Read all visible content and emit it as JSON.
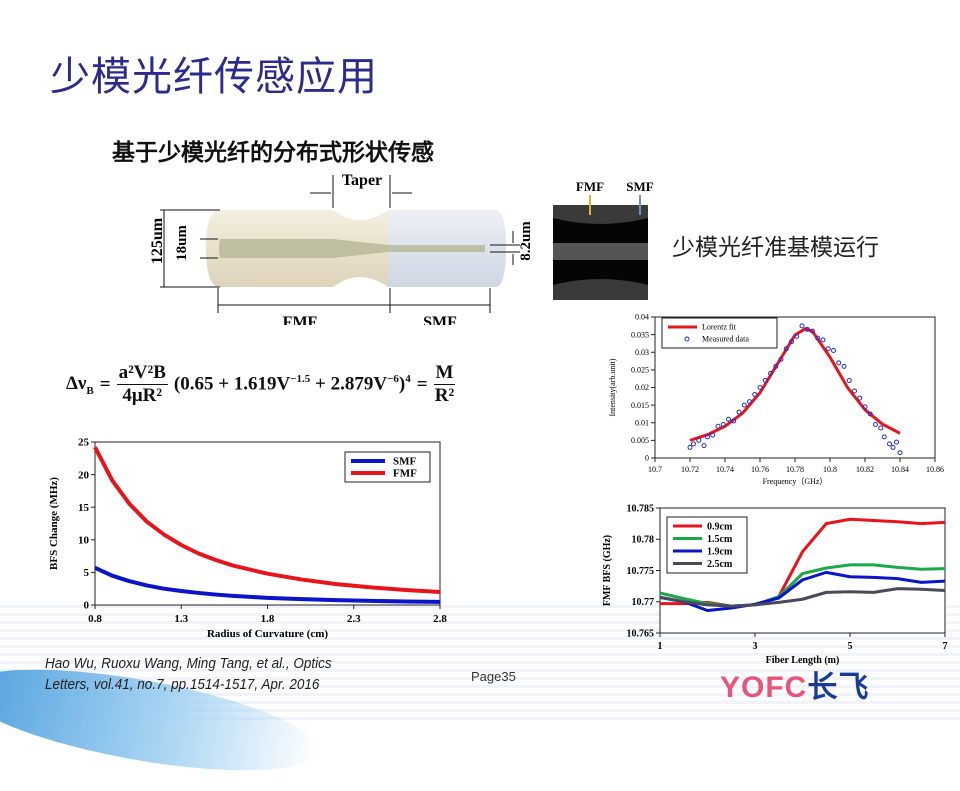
{
  "slide": {
    "title": "少模光纤传感应用",
    "subtitle": "基于少模光纤的分布式形状传感",
    "right_note": "少模光纤准基模运行",
    "page": "Page35",
    "citation_line1": "Hao Wu, Ruoxu Wang, Ming Tang, et al., Optics",
    "citation_line2": "Letters, vol.41, no.7, pp.1514-1517, Apr. 2016",
    "logo_left": "YOFC",
    "logo_right": "长飞"
  },
  "diagram": {
    "taper": "Taper",
    "d125": "125um",
    "d18": "18um",
    "d82": "8.2um",
    "fmf": "FMF",
    "smf": "SMF",
    "micro_fmf": "FMF",
    "micro_smf": "SMF"
  },
  "formula": {
    "lhs": "Δν",
    "lhs_sub": "B",
    "eq": "=",
    "num": "a²V²B",
    "den": "4μR²",
    "paren_open": "(0.65 + 1.619V",
    "exp1": "−1.5",
    "mid": " + 2.879V",
    "exp2": "−6",
    "paren_close": ")",
    "pow": "4",
    "eq2": "=",
    "num2": "M",
    "den2": "R²"
  },
  "colors": {
    "title": "#2b2b8e",
    "red": "#e8141c",
    "blue": "#0a14c8",
    "green": "#1aa84a",
    "gray": "#4a4a5a",
    "logo_red": "#e8557a",
    "logo_blue": "#1a3a9a"
  },
  "chart_data": [
    {
      "type": "line",
      "title": "",
      "xlabel": "Radius of Curvature (cm)",
      "ylabel": "BFS Change (MHz)",
      "xlim": [
        0.8,
        2.8
      ],
      "ylim": [
        0,
        25
      ],
      "xticks": [
        "0.8",
        "1.3",
        "1.8",
        "2.3",
        "2.8"
      ],
      "yticks": [
        "0",
        "5",
        "10",
        "15",
        "20",
        "25"
      ],
      "legend": "top-right",
      "x": [
        0.8,
        0.9,
        1.0,
        1.1,
        1.2,
        1.3,
        1.4,
        1.5,
        1.6,
        1.8,
        2.0,
        2.2,
        2.4,
        2.6,
        2.8
      ],
      "series": [
        {
          "name": "SMF",
          "color": "#0a14c8",
          "values": [
            5.7,
            4.5,
            3.65,
            3.0,
            2.5,
            2.15,
            1.85,
            1.6,
            1.4,
            1.1,
            0.9,
            0.75,
            0.63,
            0.54,
            0.47
          ]
        },
        {
          "name": "FMF",
          "color": "#e8141c",
          "values": [
            24.2,
            19.1,
            15.5,
            12.8,
            10.8,
            9.2,
            7.9,
            6.9,
            6.05,
            4.8,
            3.9,
            3.2,
            2.7,
            2.3,
            2.0
          ]
        }
      ]
    },
    {
      "type": "scatter",
      "title": "",
      "xlabel": "Frequency（GHz）",
      "ylabel": "Intensity(arb.unit)",
      "xlim": [
        10.7,
        10.86
      ],
      "ylim": [
        0,
        0.04
      ],
      "xticks": [
        "10.7",
        "10.72",
        "10.74",
        "10.76",
        "10.78",
        "10.8",
        "10.82",
        "10.84",
        "10.86"
      ],
      "yticks": [
        "0",
        "0.005",
        "0.01",
        "0.015",
        "0.02",
        "0.025",
        "0.03",
        "0.035",
        "0.04"
      ],
      "legend": "top-left",
      "series": [
        {
          "name": "Lorentz fit",
          "type": "line",
          "color": "#e8141c",
          "x": [
            10.72,
            10.73,
            10.74,
            10.75,
            10.76,
            10.77,
            10.78,
            10.786,
            10.79,
            10.8,
            10.81,
            10.82,
            10.83,
            10.84
          ],
          "values": [
            0.005,
            0.0066,
            0.009,
            0.0127,
            0.0185,
            0.0267,
            0.0349,
            0.0367,
            0.0359,
            0.0286,
            0.02,
            0.0137,
            0.0096,
            0.007
          ]
        },
        {
          "name": "Measured data",
          "type": "scatter",
          "color": "#2030d0",
          "x": [
            10.72,
            10.722,
            10.725,
            10.728,
            10.73,
            10.733,
            10.736,
            10.739,
            10.742,
            10.745,
            10.748,
            10.751,
            10.754,
            10.757,
            10.76,
            10.763,
            10.766,
            10.769,
            10.772,
            10.775,
            10.778,
            10.781,
            10.784,
            10.787,
            10.79,
            10.793,
            10.796,
            10.799,
            10.802,
            10.805,
            10.808,
            10.811,
            10.814,
            10.817,
            10.82,
            10.823,
            10.826,
            10.829,
            10.831,
            10.834,
            10.836,
            10.838,
            10.84
          ],
          "values": [
            0.003,
            0.004,
            0.005,
            0.0035,
            0.006,
            0.0065,
            0.009,
            0.0095,
            0.011,
            0.0105,
            0.013,
            0.015,
            0.016,
            0.018,
            0.02,
            0.022,
            0.024,
            0.026,
            0.028,
            0.031,
            0.033,
            0.0345,
            0.0375,
            0.0365,
            0.036,
            0.034,
            0.0335,
            0.031,
            0.0305,
            0.027,
            0.026,
            0.022,
            0.019,
            0.017,
            0.0145,
            0.0125,
            0.0095,
            0.0085,
            0.006,
            0.004,
            0.003,
            0.0045,
            0.0015
          ]
        }
      ]
    },
    {
      "type": "line",
      "title": "",
      "xlabel": "Fiber Length (m)",
      "ylabel": "FMF BFS (GHz)",
      "xlim": [
        1,
        7
      ],
      "ylim": [
        10.765,
        10.785
      ],
      "xticks": [
        "1",
        "3",
        "5",
        "7"
      ],
      "yticks": [
        "10.765",
        "10.77",
        "10.775",
        "10.78",
        "10.785"
      ],
      "legend": "top-left",
      "x": [
        1,
        1.5,
        2,
        2.5,
        3,
        3.5,
        4,
        4.5,
        5,
        5.5,
        6,
        6.5,
        7
      ],
      "series": [
        {
          "name": "0.9cm",
          "color": "#e8141c",
          "values": [
            10.7697,
            10.7697,
            10.7699,
            10.7693,
            10.7695,
            10.7708,
            10.778,
            10.7825,
            10.7832,
            10.783,
            10.7828,
            10.7825,
            10.7827
          ]
        },
        {
          "name": "1.5cm",
          "color": "#1aa84a",
          "values": [
            10.7714,
            10.7705,
            10.7697,
            10.7693,
            10.7695,
            10.7708,
            10.7745,
            10.7754,
            10.7759,
            10.7759,
            10.7755,
            10.7752,
            10.7753
          ]
        },
        {
          "name": "1.9cm",
          "color": "#0a14c8",
          "values": [
            10.7707,
            10.77,
            10.7686,
            10.769,
            10.7696,
            10.7706,
            10.7735,
            10.7747,
            10.774,
            10.7739,
            10.7737,
            10.7731,
            10.7733
          ]
        },
        {
          "name": "2.5cm",
          "color": "#4a4a5a",
          "values": [
            10.7707,
            10.77,
            10.7695,
            10.7693,
            10.7695,
            10.7699,
            10.7704,
            10.7715,
            10.7716,
            10.7715,
            10.7721,
            10.772,
            10.7718
          ]
        }
      ]
    }
  ]
}
